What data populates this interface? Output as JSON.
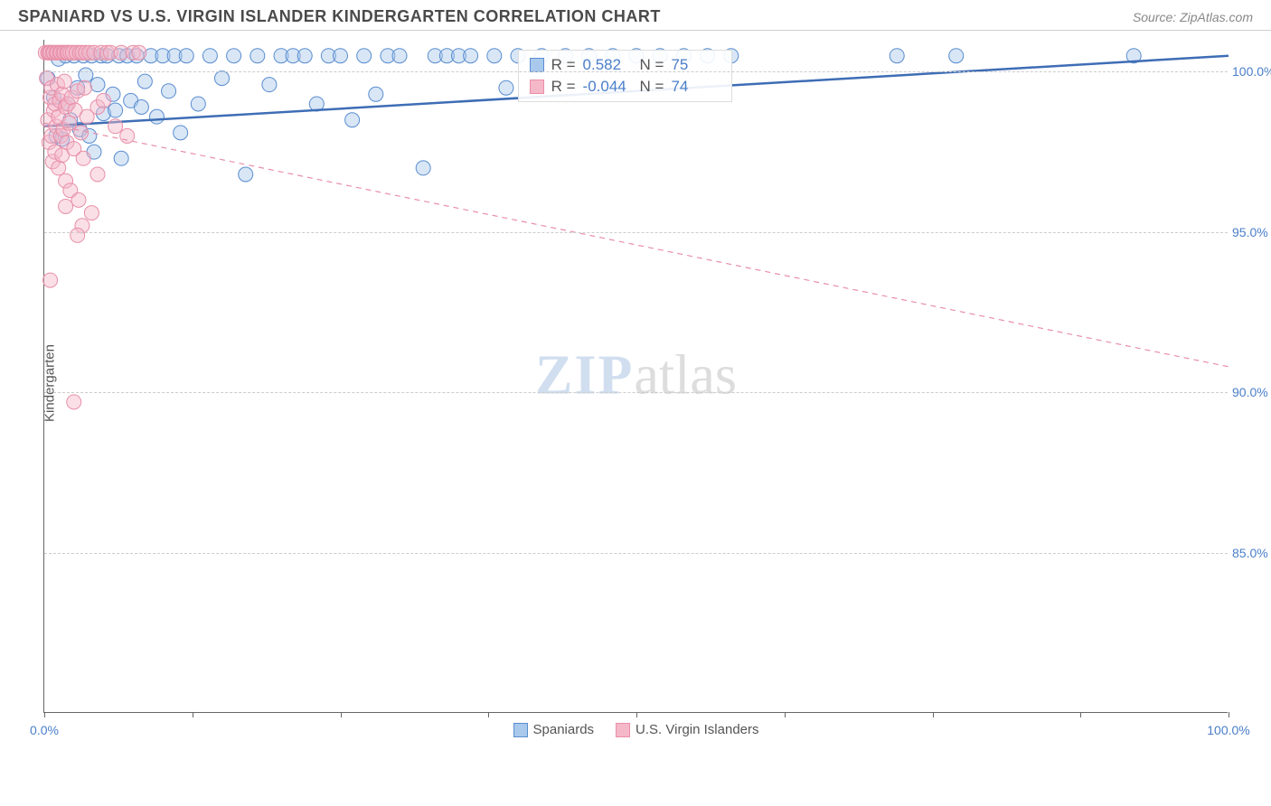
{
  "header": {
    "title": "SPANIARD VS U.S. VIRGIN ISLANDER KINDERGARTEN CORRELATION CHART",
    "source": "Source: ZipAtlas.com"
  },
  "chart": {
    "type": "scatter",
    "y_axis_title": "Kindergarten",
    "xlim": [
      0,
      100
    ],
    "ylim": [
      80,
      101
    ],
    "x_ticks": [
      0,
      12.5,
      25,
      37.5,
      50,
      62.5,
      75,
      87.5,
      100
    ],
    "x_tick_labels": {
      "0": "0.0%",
      "100": "100.0%"
    },
    "y_ticks": [
      85,
      90,
      95,
      100
    ],
    "y_tick_labels": {
      "85": "85.0%",
      "90": "90.0%",
      "95": "95.0%",
      "100": "100.0%"
    },
    "background_color": "#ffffff",
    "grid_color": "#cccccc",
    "marker_radius": 8,
    "marker_opacity": 0.45,
    "watermark": {
      "zip": "ZIP",
      "atlas": "atlas"
    },
    "series": [
      {
        "name": "Spaniards",
        "color_fill": "#a8c8ec",
        "color_stroke": "#5a8dd0",
        "r_label": "R = ",
        "r_value": "0.582",
        "n_label": "N = ",
        "n_value": "75",
        "trend": {
          "x1": 0,
          "y1": 98.3,
          "x2": 100,
          "y2": 100.5,
          "dash": "none",
          "width": 2.5,
          "color": "#3e6db5"
        },
        "points": [
          [
            0.3,
            99.8
          ],
          [
            0.5,
            100.6
          ],
          [
            0.8,
            99.2
          ],
          [
            1.0,
            98.0
          ],
          [
            1.2,
            100.4
          ],
          [
            1.5,
            97.9
          ],
          [
            1.8,
            100.5
          ],
          [
            2.0,
            99.0
          ],
          [
            2.2,
            98.5
          ],
          [
            2.5,
            100.5
          ],
          [
            2.8,
            99.5
          ],
          [
            3.0,
            98.2
          ],
          [
            3.3,
            100.5
          ],
          [
            3.5,
            99.9
          ],
          [
            3.8,
            98.0
          ],
          [
            4.0,
            100.5
          ],
          [
            4.2,
            97.5
          ],
          [
            4.5,
            99.6
          ],
          [
            4.8,
            100.5
          ],
          [
            5.0,
            98.7
          ],
          [
            5.3,
            100.5
          ],
          [
            5.8,
            99.3
          ],
          [
            6.0,
            98.8
          ],
          [
            6.3,
            100.5
          ],
          [
            6.5,
            97.3
          ],
          [
            7.0,
            100.5
          ],
          [
            7.3,
            99.1
          ],
          [
            7.8,
            100.5
          ],
          [
            8.2,
            98.9
          ],
          [
            8.5,
            99.7
          ],
          [
            9.0,
            100.5
          ],
          [
            9.5,
            98.6
          ],
          [
            10.0,
            100.5
          ],
          [
            10.5,
            99.4
          ],
          [
            11.0,
            100.5
          ],
          [
            11.5,
            98.1
          ],
          [
            12.0,
            100.5
          ],
          [
            13.0,
            99.0
          ],
          [
            14.0,
            100.5
          ],
          [
            15.0,
            99.8
          ],
          [
            16.0,
            100.5
          ],
          [
            17.0,
            96.8
          ],
          [
            18.0,
            100.5
          ],
          [
            19.0,
            99.6
          ],
          [
            20.0,
            100.5
          ],
          [
            21.0,
            100.5
          ],
          [
            22.0,
            100.5
          ],
          [
            23.0,
            99.0
          ],
          [
            24.0,
            100.5
          ],
          [
            25.0,
            100.5
          ],
          [
            26.0,
            98.5
          ],
          [
            27.0,
            100.5
          ],
          [
            28.0,
            99.3
          ],
          [
            29.0,
            100.5
          ],
          [
            30.0,
            100.5
          ],
          [
            32.0,
            97.0
          ],
          [
            33.0,
            100.5
          ],
          [
            34.0,
            100.5
          ],
          [
            35.0,
            100.5
          ],
          [
            36.0,
            100.5
          ],
          [
            38.0,
            100.5
          ],
          [
            39.0,
            99.5
          ],
          [
            40.0,
            100.5
          ],
          [
            42.0,
            100.5
          ],
          [
            44.0,
            100.5
          ],
          [
            46.0,
            100.5
          ],
          [
            48.0,
            100.5
          ],
          [
            50.0,
            100.5
          ],
          [
            52.0,
            100.5
          ],
          [
            54.0,
            100.5
          ],
          [
            56.0,
            100.5
          ],
          [
            58.0,
            100.5
          ],
          [
            72.0,
            100.5
          ],
          [
            77.0,
            100.5
          ],
          [
            92.0,
            100.5
          ]
        ]
      },
      {
        "name": "U.S. Virgin Islanders",
        "color_fill": "#f5b8c9",
        "color_stroke": "#e88fa8",
        "r_label": "R = ",
        "r_value": "-0.044",
        "n_label": "N = ",
        "n_value": "74",
        "trend": {
          "x1": 0,
          "y1": 98.4,
          "x2": 100,
          "y2": 90.8,
          "dash": "6,5",
          "width": 1.2,
          "color": "#e88fa8"
        },
        "points": [
          [
            0.1,
            100.6
          ],
          [
            0.2,
            99.8
          ],
          [
            0.3,
            100.6
          ],
          [
            0.3,
            98.5
          ],
          [
            0.4,
            100.6
          ],
          [
            0.4,
            97.8
          ],
          [
            0.5,
            99.2
          ],
          [
            0.5,
            100.6
          ],
          [
            0.6,
            98.0
          ],
          [
            0.6,
            99.5
          ],
          [
            0.7,
            100.6
          ],
          [
            0.7,
            97.2
          ],
          [
            0.8,
            98.8
          ],
          [
            0.8,
            100.6
          ],
          [
            0.9,
            99.0
          ],
          [
            0.9,
            97.5
          ],
          [
            1.0,
            100.6
          ],
          [
            1.0,
            98.3
          ],
          [
            1.1,
            99.6
          ],
          [
            1.1,
            100.6
          ],
          [
            1.2,
            97.0
          ],
          [
            1.2,
            98.6
          ],
          [
            1.3,
            100.6
          ],
          [
            1.3,
            99.1
          ],
          [
            1.4,
            98.0
          ],
          [
            1.4,
            100.6
          ],
          [
            1.5,
            97.4
          ],
          [
            1.5,
            99.3
          ],
          [
            1.6,
            100.6
          ],
          [
            1.6,
            98.2
          ],
          [
            1.7,
            99.7
          ],
          [
            1.7,
            100.6
          ],
          [
            1.8,
            96.6
          ],
          [
            1.8,
            98.9
          ],
          [
            1.9,
            100.6
          ],
          [
            1.9,
            97.8
          ],
          [
            2.0,
            99.0
          ],
          [
            2.0,
            100.6
          ],
          [
            2.1,
            98.4
          ],
          [
            2.2,
            100.6
          ],
          [
            2.2,
            96.3
          ],
          [
            2.3,
            99.2
          ],
          [
            2.4,
            100.6
          ],
          [
            2.5,
            97.6
          ],
          [
            2.6,
            98.8
          ],
          [
            2.7,
            100.6
          ],
          [
            2.8,
            99.4
          ],
          [
            2.9,
            96.0
          ],
          [
            3.0,
            100.6
          ],
          [
            3.1,
            98.1
          ],
          [
            3.2,
            100.6
          ],
          [
            3.3,
            97.3
          ],
          [
            3.4,
            99.5
          ],
          [
            3.5,
            100.6
          ],
          [
            3.6,
            98.6
          ],
          [
            3.8,
            100.6
          ],
          [
            4.0,
            95.6
          ],
          [
            4.2,
            100.6
          ],
          [
            4.5,
            98.9
          ],
          [
            4.8,
            100.6
          ],
          [
            5.0,
            99.1
          ],
          [
            5.3,
            100.6
          ],
          [
            5.6,
            100.6
          ],
          [
            6.0,
            98.3
          ],
          [
            6.5,
            100.6
          ],
          [
            7.0,
            98.0
          ],
          [
            7.5,
            100.6
          ],
          [
            8.0,
            100.6
          ],
          [
            0.5,
            93.5
          ],
          [
            2.5,
            89.7
          ],
          [
            3.2,
            95.2
          ],
          [
            4.5,
            96.8
          ],
          [
            1.8,
            95.8
          ],
          [
            2.8,
            94.9
          ]
        ]
      }
    ],
    "legend_bottom": [
      {
        "label": "Spaniards",
        "fill": "#a8c8ec",
        "stroke": "#5a8dd0"
      },
      {
        "label": "U.S. Virgin Islanders",
        "fill": "#f5b8c9",
        "stroke": "#e88fa8"
      }
    ],
    "corr_box": {
      "left_pct": 40,
      "top_pct": 1.5
    }
  }
}
